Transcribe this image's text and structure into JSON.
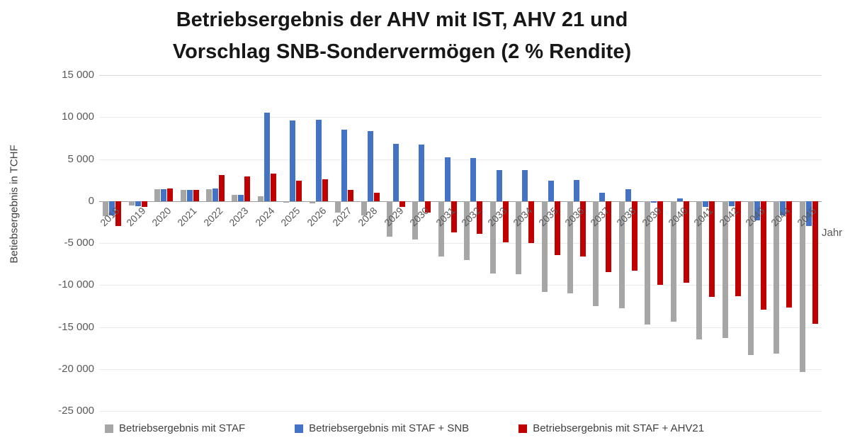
{
  "title": {
    "line1": "Betriebsergebnis der AHV mit IST,  AHV 21 und",
    "line2": "Vorschlag SNB-Sondervermögen (2 % Rendite)"
  },
  "axes": {
    "y_label": "Betiebsergebnis in TCHF",
    "x_label": "Jahr"
  },
  "chart_data": {
    "type": "bar",
    "title": "Betriebsergebnis der AHV mit IST,  AHV 21 und Vorschlag SNB-Sondervermögen (2 % Rendite)",
    "xlabel": "Jahr",
    "ylabel": "Betiebsergebnis in TCHF",
    "ylim": [
      -25000,
      15000
    ],
    "grid": true,
    "legend_position": "bottom",
    "yticks": [
      {
        "value": 15000,
        "label": "15 000"
      },
      {
        "value": 10000,
        "label": "10 000"
      },
      {
        "value": 5000,
        "label": "5 000"
      },
      {
        "value": 0,
        "label": "0"
      },
      {
        "value": -5000,
        "label": "-5 000"
      },
      {
        "value": -10000,
        "label": "-10 000"
      },
      {
        "value": -15000,
        "label": "-15 000"
      },
      {
        "value": -20000,
        "label": "-20 000"
      },
      {
        "value": -25000,
        "label": "-25 000"
      }
    ],
    "categories": [
      "2018",
      "2019",
      "2020",
      "2021",
      "2022",
      "2023",
      "2024",
      "2025",
      "2026",
      "2027",
      "2028",
      "2029",
      "2030",
      "2031",
      "2032",
      "2033",
      "2034",
      "2035",
      "2036",
      "2037",
      "2038",
      "2039",
      "2040",
      "2041",
      "2042",
      "2043",
      "2044",
      "2045"
    ],
    "series": [
      {
        "name": "Betriebsergebnis mit STAF",
        "color": "#a6a6a6",
        "values": [
          -1800,
          -500,
          1400,
          1300,
          1400,
          700,
          600,
          -200,
          -300,
          -1400,
          -1700,
          -4200,
          -4600,
          -6600,
          -7000,
          -8600,
          -8700,
          -10800,
          -11000,
          -12500,
          -12800,
          -14700,
          -14400,
          -16500,
          -16300,
          -18300,
          -18200,
          -20400
        ]
      },
      {
        "name": "Betriebsergebnis mit STAF + SNB",
        "color": "#4472c4",
        "values": [
          -1700,
          -600,
          1400,
          1300,
          1500,
          700,
          10500,
          9600,
          9700,
          8500,
          8300,
          6800,
          6700,
          5200,
          5100,
          3700,
          3700,
          2400,
          2500,
          1000,
          1400,
          -200,
          300,
          -700,
          -600,
          -2300,
          -1700,
          -3000
        ]
      },
      {
        "name": "Betriebsergebnis mit STAF + AHV21",
        "color": "#c00000",
        "values": [
          -3000,
          -700,
          1500,
          1300,
          3100,
          2900,
          3300,
          2400,
          2600,
          1300,
          1000,
          -700,
          -1400,
          -3700,
          -3900,
          -4900,
          -5000,
          -6400,
          -6600,
          -8500,
          -8300,
          -10000,
          -9700,
          -11400,
          -11300,
          -12900,
          -12700,
          -14600
        ]
      }
    ]
  }
}
